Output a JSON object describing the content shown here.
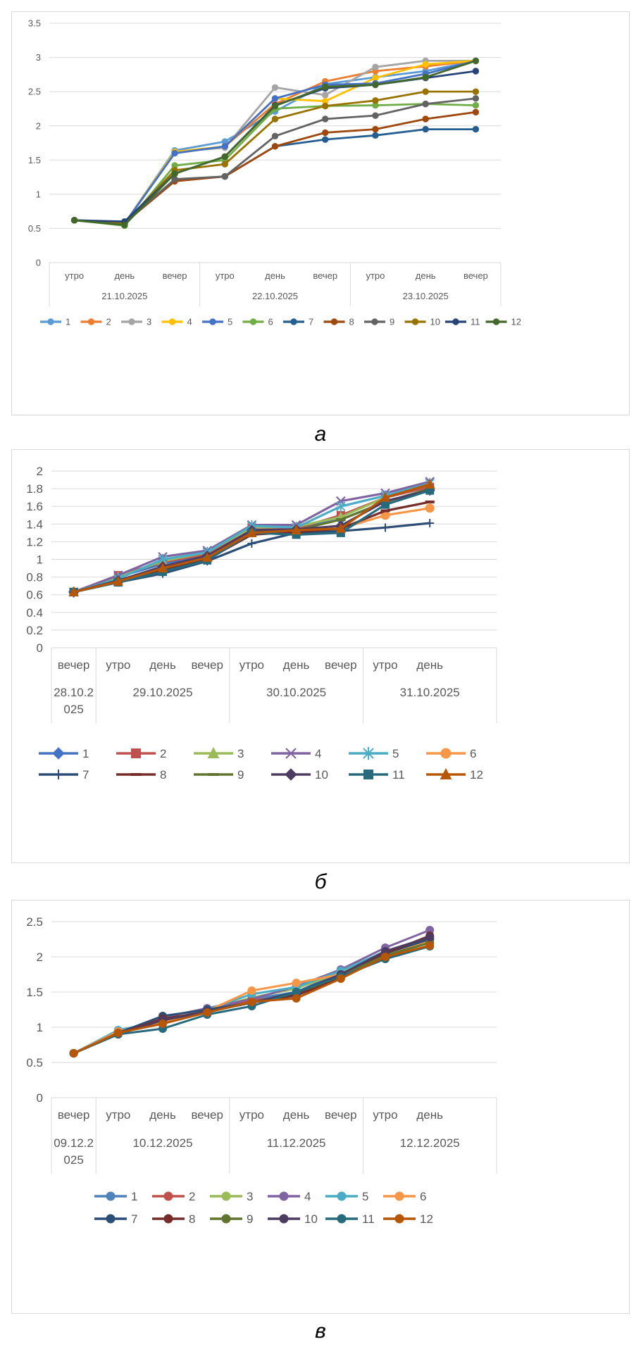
{
  "captions": [
    "а",
    "б",
    "в"
  ],
  "chart_data": [
    {
      "type": "line",
      "marker": "circle",
      "ylim": [
        0,
        3.5
      ],
      "yticks": [
        "0",
        "0.5",
        "1",
        "1.5",
        "2",
        "2.5",
        "3",
        "3.5"
      ],
      "time_labels": [
        "утро",
        "день",
        "вечер",
        "утро",
        "день",
        "вечер",
        "утро",
        "день",
        "вечер"
      ],
      "date_labels": [
        "21.10.2025",
        "22.10.2025",
        "23.10.2025"
      ],
      "date_spans": [
        3,
        3,
        3
      ],
      "legend_placement": "bottom",
      "grid": true,
      "series": [
        {
          "name": "1",
          "color": "#5B9BD5",
          "values": [
            0.62,
            0.57,
            1.64,
            1.77,
            2.21,
            2.61,
            2.71,
            2.8,
            2.95
          ]
        },
        {
          "name": "2",
          "color": "#ED7D31",
          "values": [
            0.62,
            0.57,
            1.6,
            1.7,
            2.32,
            2.65,
            2.8,
            2.87,
            2.95
          ]
        },
        {
          "name": "3",
          "color": "#A5A5A5",
          "values": [
            0.62,
            0.57,
            1.62,
            1.68,
            2.56,
            2.45,
            2.86,
            2.95,
            2.95
          ]
        },
        {
          "name": "4",
          "color": "#FFC000",
          "values": [
            0.62,
            0.57,
            1.62,
            1.7,
            2.4,
            2.36,
            2.7,
            2.9,
            2.95
          ]
        },
        {
          "name": "5",
          "color": "#4472C4",
          "values": [
            0.62,
            0.57,
            1.6,
            1.7,
            2.4,
            2.6,
            2.62,
            2.76,
            2.95
          ]
        },
        {
          "name": "6",
          "color": "#70AD47",
          "values": [
            0.62,
            0.54,
            1.42,
            1.5,
            2.25,
            2.29,
            2.3,
            2.32,
            2.3
          ]
        },
        {
          "name": "7",
          "color": "#255E91",
          "values": [
            0.62,
            0.58,
            1.2,
            1.26,
            1.7,
            1.8,
            1.86,
            1.95,
            1.95
          ]
        },
        {
          "name": "8",
          "color": "#9E480E",
          "values": [
            0.62,
            0.58,
            1.19,
            1.26,
            1.7,
            1.9,
            1.95,
            2.1,
            2.2
          ]
        },
        {
          "name": "9",
          "color": "#636363",
          "values": [
            0.62,
            0.58,
            1.22,
            1.26,
            1.85,
            2.1,
            2.15,
            2.32,
            2.4
          ]
        },
        {
          "name": "10",
          "color": "#997300",
          "values": [
            0.62,
            0.58,
            1.35,
            1.44,
            2.1,
            2.29,
            2.37,
            2.5,
            2.5
          ]
        },
        {
          "name": "11",
          "color": "#264478",
          "values": [
            0.62,
            0.6,
            1.3,
            1.55,
            2.3,
            2.55,
            2.6,
            2.7,
            2.8
          ]
        },
        {
          "name": "12",
          "color": "#43682B",
          "values": [
            0.62,
            0.55,
            1.3,
            1.55,
            2.29,
            2.57,
            2.6,
            2.71,
            2.95
          ]
        }
      ]
    },
    {
      "type": "line",
      "marker": "mixed",
      "ylim": [
        0,
        2
      ],
      "yticks": [
        "0",
        "0.2",
        "0.4",
        "0.6",
        "0.8",
        "1",
        "1.2",
        "1.4",
        "1.6",
        "1.8",
        "2"
      ],
      "time_labels": [
        "вечер",
        "утро",
        "день",
        "вечер",
        "утро",
        "день",
        "вечер",
        "утро",
        "день",
        ""
      ],
      "date_labels": [
        "28.10.2\n025",
        "29.10.2025",
        "30.10.2025",
        "31.10.2025"
      ],
      "date_spans": [
        1,
        3,
        3,
        3
      ],
      "legend_placement": "bottom",
      "grid": true,
      "series": [
        {
          "name": "1",
          "color": "#4472C4",
          "marker": "diamond",
          "values": [
            0.63,
            0.8,
            0.95,
            1.05,
            1.35,
            1.35,
            1.45,
            1.65,
            1.8
          ]
        },
        {
          "name": "2",
          "color": "#C0504D",
          "marker": "square",
          "values": [
            0.63,
            0.82,
            0.97,
            1.06,
            1.36,
            1.35,
            1.5,
            1.7,
            1.82
          ]
        },
        {
          "name": "3",
          "color": "#9BBB59",
          "marker": "triangle",
          "values": [
            0.63,
            0.8,
            0.98,
            1.08,
            1.36,
            1.37,
            1.48,
            1.7,
            1.85
          ]
        },
        {
          "name": "4",
          "color": "#8064A2",
          "marker": "x",
          "values": [
            0.63,
            0.82,
            1.03,
            1.1,
            1.39,
            1.39,
            1.66,
            1.75,
            1.88
          ]
        },
        {
          "name": "5",
          "color": "#4BACC6",
          "marker": "star",
          "values": [
            0.63,
            0.78,
            1.0,
            1.08,
            1.38,
            1.36,
            1.6,
            1.72,
            1.86
          ]
        },
        {
          "name": "6",
          "color": "#F79646",
          "marker": "circle",
          "values": [
            0.63,
            0.75,
            0.92,
            1.03,
            1.3,
            1.32,
            1.35,
            1.5,
            1.58
          ]
        },
        {
          "name": "7",
          "color": "#2C4D75",
          "marker": "plus",
          "values": [
            0.63,
            0.74,
            0.84,
            0.98,
            1.18,
            1.3,
            1.32,
            1.36,
            1.41
          ]
        },
        {
          "name": "8",
          "color": "#772C2A",
          "marker": "dash",
          "values": [
            0.63,
            0.75,
            0.88,
            1.0,
            1.28,
            1.31,
            1.35,
            1.55,
            1.65
          ]
        },
        {
          "name": "9",
          "color": "#5F7530",
          "marker": "dash",
          "values": [
            0.63,
            0.76,
            0.9,
            1.02,
            1.32,
            1.33,
            1.45,
            1.65,
            1.8
          ]
        },
        {
          "name": "10",
          "color": "#4D3B62",
          "marker": "diamond",
          "values": [
            0.63,
            0.76,
            0.92,
            1.04,
            1.33,
            1.34,
            1.38,
            1.66,
            1.78
          ]
        },
        {
          "name": "11",
          "color": "#276A7C",
          "marker": "square",
          "values": [
            0.63,
            0.74,
            0.86,
            0.99,
            1.3,
            1.28,
            1.3,
            1.62,
            1.78
          ]
        },
        {
          "name": "12",
          "color": "#B65708",
          "marker": "triangle",
          "values": [
            0.63,
            0.75,
            0.9,
            1.02,
            1.3,
            1.33,
            1.35,
            1.7,
            1.85
          ]
        }
      ]
    },
    {
      "type": "line",
      "marker": "circle",
      "ylim": [
        0,
        2.5
      ],
      "yticks": [
        "0",
        "0.5",
        "1",
        "1.5",
        "2",
        "2.5"
      ],
      "time_labels": [
        "вечер",
        "утро",
        "день",
        "вечер",
        "утро",
        "день",
        "вечер",
        "утро",
        "день",
        ""
      ],
      "date_labels": [
        "09.12.2\n025",
        "10.12.2025",
        "11.12.2025",
        "12.12.2025"
      ],
      "date_spans": [
        1,
        3,
        3,
        3
      ],
      "legend_placement": "bottom",
      "grid": true,
      "series": [
        {
          "name": "1",
          "color": "#4F81BD",
          "values": [
            0.63,
            0.93,
            1.1,
            1.24,
            1.4,
            1.5,
            1.78,
            2.05,
            2.25
          ]
        },
        {
          "name": "2",
          "color": "#C0504D",
          "values": [
            0.63,
            0.93,
            1.05,
            1.22,
            1.38,
            1.45,
            1.75,
            2.05,
            2.25
          ]
        },
        {
          "name": "3",
          "color": "#9BBB59",
          "values": [
            0.63,
            0.92,
            1.06,
            1.25,
            1.42,
            1.55,
            1.78,
            2.08,
            2.28
          ]
        },
        {
          "name": "4",
          "color": "#8064A2",
          "values": [
            0.63,
            0.91,
            1.14,
            1.27,
            1.4,
            1.58,
            1.82,
            2.13,
            2.38
          ]
        },
        {
          "name": "5",
          "color": "#4BACC6",
          "values": [
            0.63,
            0.96,
            1.08,
            1.25,
            1.47,
            1.57,
            1.8,
            2.08,
            2.28
          ]
        },
        {
          "name": "6",
          "color": "#F79646",
          "values": [
            0.63,
            0.94,
            1.07,
            1.23,
            1.52,
            1.63,
            1.75,
            2.02,
            2.22
          ]
        },
        {
          "name": "7",
          "color": "#2C4D75",
          "values": [
            0.63,
            0.92,
            1.16,
            1.25,
            1.35,
            1.5,
            1.75,
            2.05,
            2.25
          ]
        },
        {
          "name": "8",
          "color": "#772C2A",
          "values": [
            0.63,
            0.91,
            1.12,
            1.22,
            1.35,
            1.45,
            1.7,
            2.05,
            2.3
          ]
        },
        {
          "name": "9",
          "color": "#5F7530",
          "values": [
            0.63,
            0.9,
            1.1,
            1.22,
            1.35,
            1.48,
            1.73,
            2.02,
            2.2
          ]
        },
        {
          "name": "10",
          "color": "#4D3B62",
          "values": [
            0.63,
            0.9,
            1.1,
            1.22,
            1.35,
            1.48,
            1.75,
            2.08,
            2.28
          ]
        },
        {
          "name": "11",
          "color": "#276A7C",
          "values": [
            0.63,
            0.9,
            0.98,
            1.18,
            1.3,
            1.5,
            1.72,
            1.97,
            2.15
          ]
        },
        {
          "name": "12",
          "color": "#B65708",
          "values": [
            0.63,
            0.92,
            1.05,
            1.21,
            1.36,
            1.41,
            1.69,
            2.0,
            2.16
          ]
        }
      ]
    }
  ]
}
